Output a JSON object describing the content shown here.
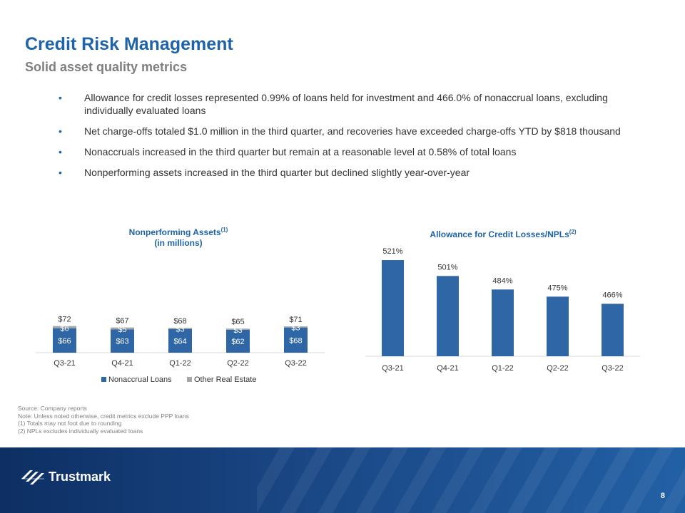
{
  "header": {
    "title": "Credit Risk Management",
    "subtitle": "Solid asset quality metrics"
  },
  "bullets": [
    "Allowance for credit losses represented 0.99% of loans held for investment and 466.0% of nonaccrual loans, excluding individually evaluated loans",
    "Net charge-offs totaled $1.0 million in the third quarter, and recoveries have exceeded charge-offs YTD by $818 thousand",
    "Nonaccruals increased in the third quarter but remain at a reasonable level at 0.58% of total loans",
    "Nonperforming assets increased in the third quarter but declined slightly year-over-year"
  ],
  "chart_data": [
    {
      "type": "bar",
      "stacked": true,
      "title": "Nonperforming Assets",
      "title_superscript": "(1)",
      "subtitle": "(in millions)",
      "categories": [
        "Q3-21",
        "Q4-21",
        "Q1-22",
        "Q2-22",
        "Q3-22"
      ],
      "series": [
        {
          "name": "Nonaccrual Loans",
          "values": [
            66,
            63,
            64,
            62,
            68
          ],
          "labels": [
            "$66",
            "$63",
            "$64",
            "$62",
            "$68"
          ],
          "color": "#2f67a6"
        },
        {
          "name": "Other Real Estate",
          "values": [
            6,
            5,
            3,
            3,
            3
          ],
          "labels": [
            "$6",
            "$5",
            "$3",
            "$3",
            "$3"
          ],
          "color": "#a6a6a6"
        }
      ],
      "totals": [
        "$72",
        "$67",
        "$68",
        "$65",
        "$71"
      ],
      "ylim": [
        0,
        80
      ],
      "legend": "bottom"
    },
    {
      "type": "bar",
      "title": "Allowance for Credit Losses/NPLs",
      "title_superscript": "(2)",
      "categories": [
        "Q3-21",
        "Q4-21",
        "Q1-22",
        "Q2-22",
        "Q3-22"
      ],
      "values": [
        521,
        501,
        484,
        475,
        466
      ],
      "labels": [
        "521%",
        "501%",
        "484%",
        "475%",
        "466%"
      ],
      "color": "#2f67a6",
      "ylim": [
        400,
        530
      ]
    }
  ],
  "footnotes": [
    "Source: Company reports",
    "Note: Unless noted otherwise, credit metrics exclude PPP loans",
    "(1) Totals may not foot due to rounding",
    "(2) NPLs excludes individually evaluated loans"
  ],
  "footer": {
    "logo_text": "Trustmark",
    "page_number": "8"
  }
}
